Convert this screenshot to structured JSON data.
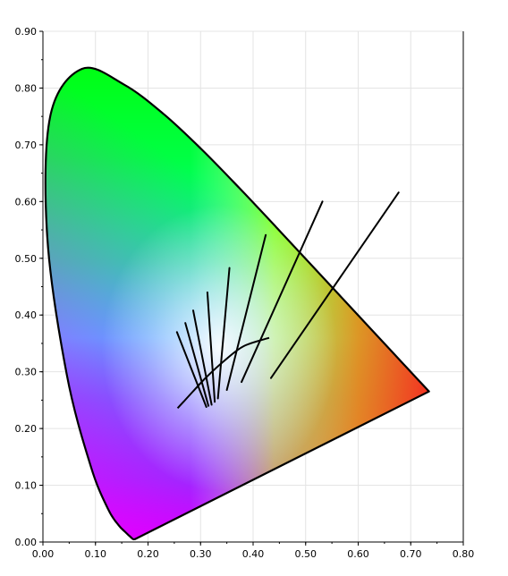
{
  "chart_data": {
    "type": "line",
    "xlim": [
      0.0,
      0.8
    ],
    "ylim": [
      0.0,
      0.9
    ],
    "x_ticks": [
      "0.00",
      "0.10",
      "0.20",
      "0.30",
      "0.40",
      "0.50",
      "0.60",
      "0.70",
      "0.80"
    ],
    "y_ticks": [
      "0.00",
      "0.10",
      "0.20",
      "0.30",
      "0.40",
      "0.50",
      "0.60",
      "0.70",
      "0.80",
      "0.90"
    ],
    "grid": true,
    "background": "CIE 1931 chromaticity diagram (spectral color gamut fill)",
    "spectral_locus": [
      [
        0.175,
        0.005
      ],
      [
        0.1741,
        0.005
      ],
      [
        0.1738,
        0.0049
      ],
      [
        0.1733,
        0.0048
      ],
      [
        0.1726,
        0.0048
      ],
      [
        0.1714,
        0.0051
      ],
      [
        0.1689,
        0.0069
      ],
      [
        0.1644,
        0.0109
      ],
      [
        0.1566,
        0.0177
      ],
      [
        0.144,
        0.0297
      ],
      [
        0.1241,
        0.0578
      ],
      [
        0.0913,
        0.1327
      ],
      [
        0.0454,
        0.295
      ],
      [
        0.0082,
        0.5384
      ],
      [
        0.0139,
        0.7502
      ],
      [
        0.0743,
        0.8338
      ],
      [
        0.1547,
        0.8059
      ],
      [
        0.2296,
        0.7543
      ],
      [
        0.3016,
        0.6923
      ],
      [
        0.3731,
        0.6245
      ],
      [
        0.4441,
        0.5547
      ],
      [
        0.5125,
        0.4866
      ],
      [
        0.5752,
        0.4242
      ],
      [
        0.627,
        0.3725
      ],
      [
        0.6658,
        0.334
      ],
      [
        0.6915,
        0.3083
      ],
      [
        0.714,
        0.2859
      ],
      [
        0.7347,
        0.2653
      ]
    ],
    "planckian_locus": [
      [
        0.4306,
        0.3598
      ],
      [
        0.3822,
        0.3452
      ],
      [
        0.3457,
        0.3198
      ],
      [
        0.3114,
        0.2908
      ],
      [
        0.2856,
        0.2654
      ],
      [
        0.2676,
        0.2471
      ],
      [
        0.2562,
        0.2359
      ]
    ],
    "isotherm_lines": [
      [
        [
          0.255,
          0.37
        ],
        [
          0.311,
          0.238
        ]
      ],
      [
        [
          0.271,
          0.386
        ],
        [
          0.315,
          0.24
        ]
      ],
      [
        [
          0.286,
          0.408
        ],
        [
          0.321,
          0.242
        ]
      ],
      [
        [
          0.313,
          0.44
        ],
        [
          0.327,
          0.247
        ]
      ],
      [
        [
          0.355,
          0.483
        ],
        [
          0.333,
          0.253
        ]
      ],
      [
        [
          0.424,
          0.541
        ],
        [
          0.35,
          0.268
        ]
      ],
      [
        [
          0.532,
          0.6
        ],
        [
          0.378,
          0.282
        ]
      ],
      [
        [
          0.677,
          0.616
        ],
        [
          0.434,
          0.289
        ]
      ]
    ]
  }
}
